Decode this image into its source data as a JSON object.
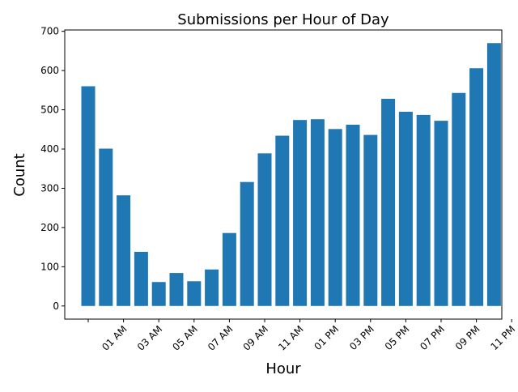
{
  "chart_data": {
    "type": "bar",
    "title": "Submissions per Hour of Day",
    "xlabel": "Hour",
    "ylabel": "Count",
    "ylim": [
      -33.5,
      703.5
    ],
    "yticks": [
      0,
      100,
      200,
      300,
      400,
      500,
      600,
      700
    ],
    "tick_labels": [
      "",
      "01 AM",
      "03 AM",
      "05 AM",
      "07 AM",
      "09 AM",
      "11 AM",
      "01 PM",
      "03 PM",
      "05 PM",
      "07 PM",
      "09 PM",
      "11 PM"
    ],
    "bar_color": "#1f77b4",
    "grid": false,
    "values": [
      560,
      401,
      282,
      138,
      61,
      84,
      63,
      93,
      186,
      316,
      389,
      434,
      474,
      476,
      451,
      462,
      436,
      528,
      495,
      487,
      472,
      543,
      606,
      670
    ]
  }
}
